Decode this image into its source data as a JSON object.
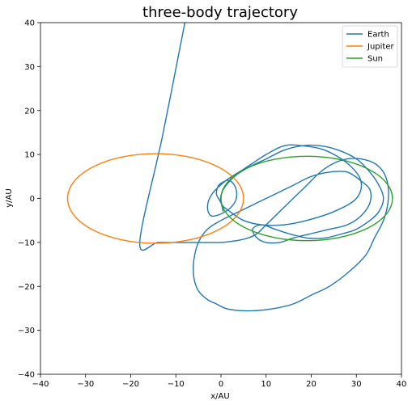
{
  "chart_data": {
    "type": "line",
    "title": "three-body trajectory",
    "xlabel": "x/AU",
    "ylabel": "y/AU",
    "xlim": [
      -40,
      40
    ],
    "ylim": [
      -40,
      40
    ],
    "xticks": [
      "−40",
      "−30",
      "−20",
      "−10",
      "0",
      "10",
      "20",
      "30",
      "40"
    ],
    "yticks": [
      "−40",
      "−30",
      "−20",
      "−10",
      "0",
      "10",
      "20",
      "30",
      "40"
    ],
    "grid": false,
    "legend_position": "top-right",
    "series": [
      {
        "name": "Earth",
        "color": "#1f77b4",
        "description": "spiral/looping path starting near the origin, expanding outward to the right with loops, plus a straight escape line",
        "x": [
          0.5,
          0,
          -1,
          -0.5,
          1,
          2,
          3,
          3.5,
          3,
          1,
          -2,
          -3,
          -2,
          1,
          4,
          7,
          10,
          14,
          18,
          23,
          28,
          31,
          30,
          25,
          19,
          14,
          9,
          5,
          2,
          0,
          0.5,
          3,
          6,
          10,
          14,
          18,
          22,
          26,
          30,
          33,
          35,
          36,
          35,
          33,
          30,
          27,
          23,
          19,
          15,
          12,
          9,
          7,
          8,
          10,
          13,
          16,
          20,
          24,
          28,
          31,
          33,
          33,
          31,
          28,
          24,
          20,
          16,
          12,
          8,
          4,
          0,
          -3,
          -5,
          -6,
          -6,
          -5,
          -3,
          -1,
          1,
          4,
          8,
          12,
          16,
          20,
          24,
          28,
          32,
          34,
          36,
          37,
          37,
          36,
          34,
          31,
          28,
          25,
          22,
          19,
          16,
          13,
          10,
          8,
          6,
          4,
          2,
          0,
          -3,
          -6,
          -10,
          -14,
          -18,
          -13,
          -8
        ],
        "y": [
          -3,
          -1,
          1,
          3,
          4,
          4,
          3,
          1,
          -1,
          -3,
          -4,
          -2,
          1,
          4,
          6,
          8,
          10,
          12,
          12,
          11,
          8,
          4,
          0,
          -3,
          -5,
          -6,
          -6,
          -5,
          -3,
          -1,
          2,
          5,
          7,
          9,
          11,
          12,
          12,
          11,
          9,
          6,
          3,
          0,
          -3,
          -5,
          -7,
          -8,
          -9,
          -9,
          -8,
          -7,
          -6,
          -7,
          -9,
          -10,
          -10,
          -9,
          -8,
          -7,
          -6,
          -4,
          -1,
          2,
          4,
          6,
          6,
          5,
          3,
          1,
          -1,
          -3,
          -5,
          -7,
          -10,
          -14,
          -18,
          -21,
          -23,
          -24,
          -25,
          -25.5,
          -25.5,
          -25,
          -24,
          -22,
          -20,
          -17,
          -13,
          -9,
          -5,
          -1,
          3,
          6,
          8,
          9,
          9,
          8,
          6,
          3,
          0,
          -3,
          -6,
          -8,
          -9,
          -9.5,
          -9.8,
          -10,
          -10,
          -10,
          -10,
          -10,
          -10,
          14,
          40
        ]
      },
      {
        "name": "Jupiter",
        "color": "#ff7f0e",
        "description": "ellipse centered near (-14.5, 0) with semi-axes ~19.5 by ~10",
        "cx": -14.5,
        "cy": 0,
        "rx": 19.5,
        "ry": 10.2
      },
      {
        "name": "Sun",
        "color": "#2ca02c",
        "description": "closed orbit centered near (19, 0) with semi-axes ~19 by ~9.5",
        "cx": 19,
        "cy": 0,
        "rx": 19,
        "ry": 9.6
      }
    ]
  }
}
